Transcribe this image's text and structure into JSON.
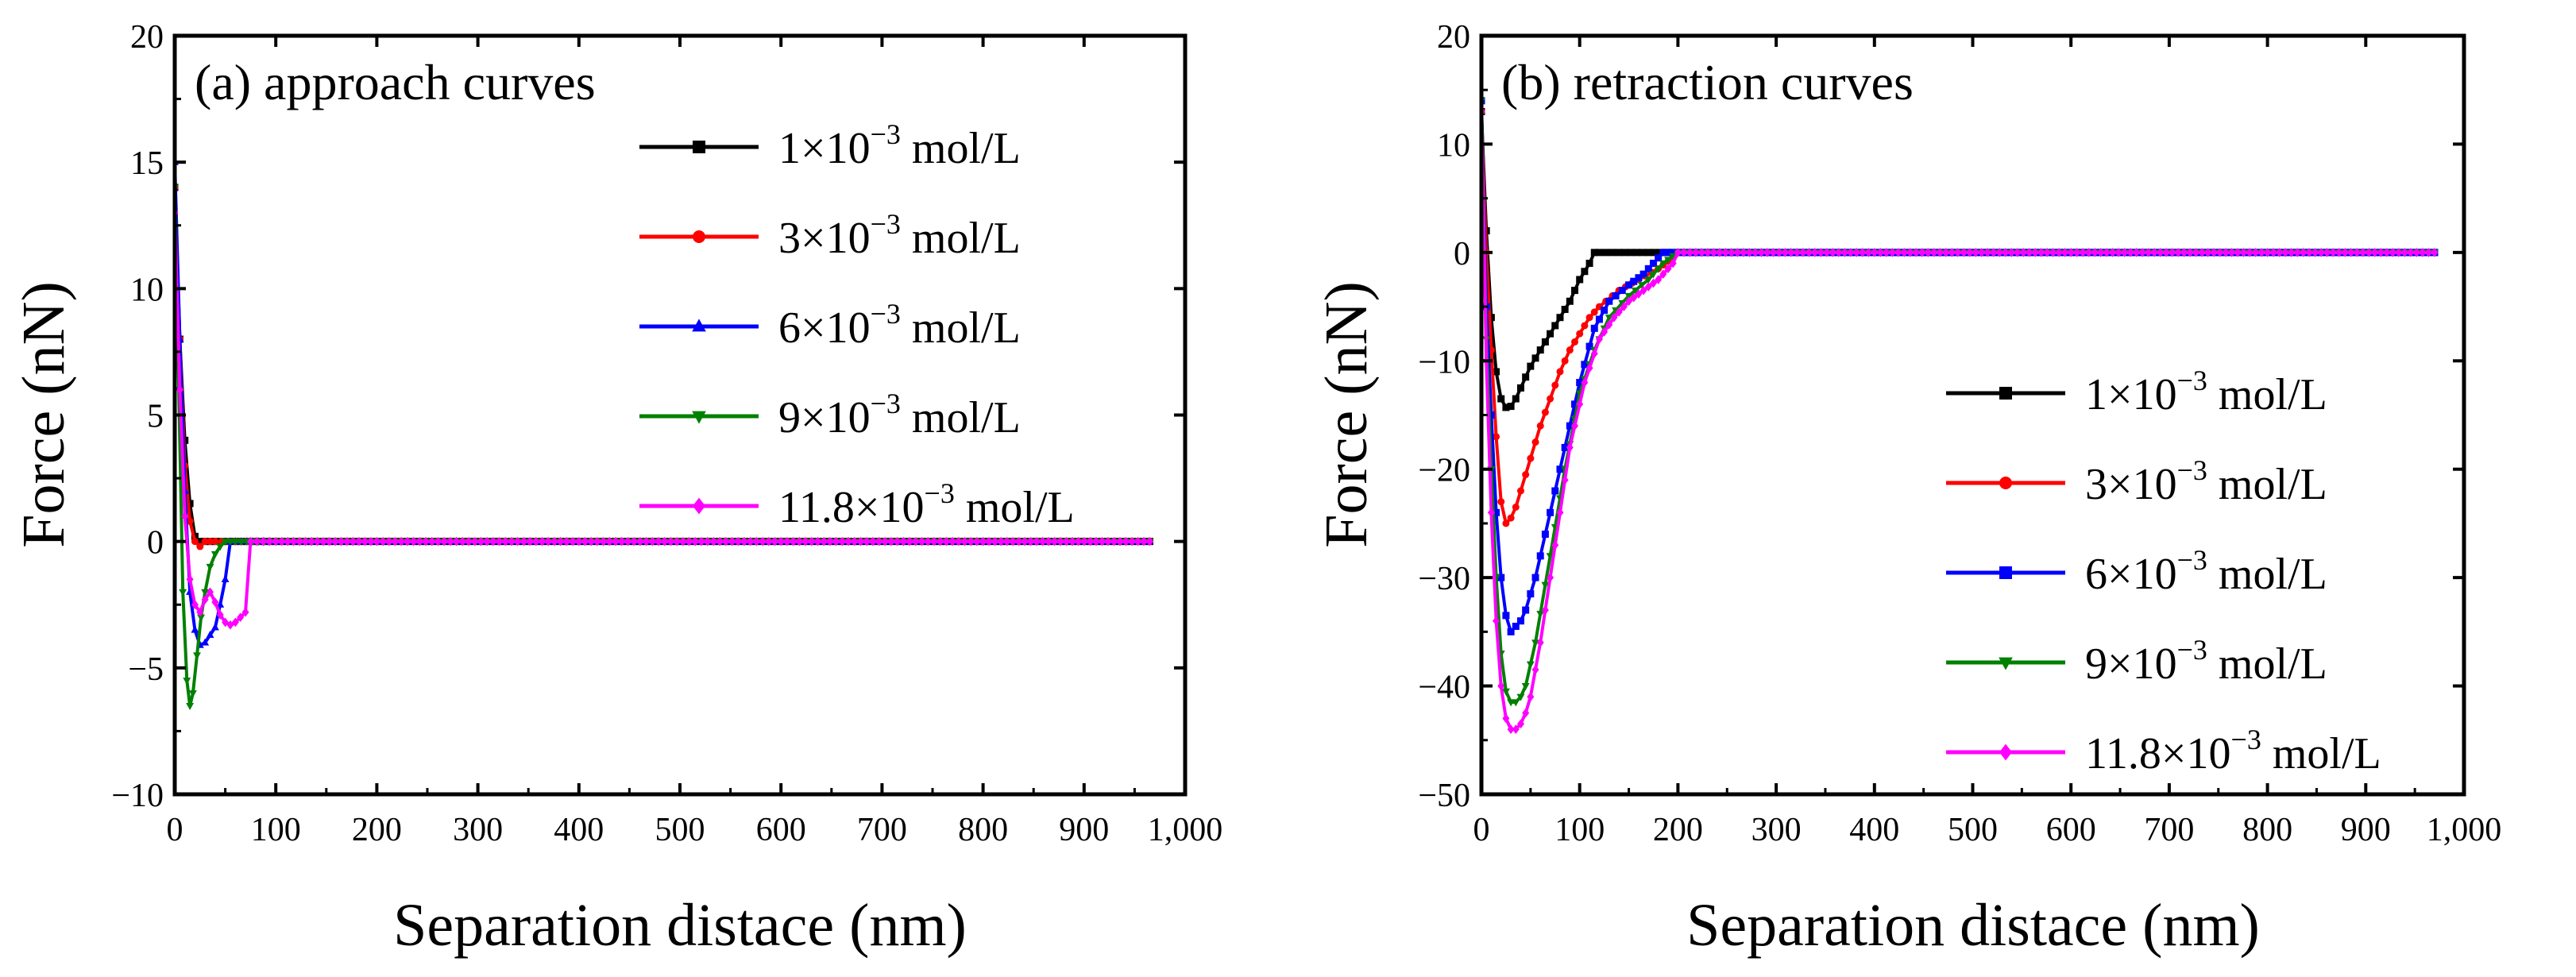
{
  "chart_data": [
    {
      "type": "line",
      "title": "(a) approach curves",
      "xlabel": "Separation distace (nm)",
      "ylabel": "Force (nN)",
      "xlim": [
        0,
        1000
      ],
      "ylim": [
        -10,
        20
      ],
      "x_ticks": [
        0,
        100,
        200,
        300,
        400,
        500,
        600,
        700,
        800,
        900,
        1000
      ],
      "x_tick_labels": [
        "0",
        "100",
        "200",
        "300",
        "400",
        "500",
        "600",
        "700",
        "800",
        "900",
        "1,000"
      ],
      "y_ticks": [
        -10,
        -5,
        0,
        5,
        10,
        15,
        20
      ],
      "y_tick_labels": [
        "−10",
        "−5",
        "0",
        "5",
        "10",
        "15",
        "20"
      ],
      "legend_position": "top-right",
      "series": [
        {
          "name_prefix": "1×10",
          "name_exp": "−3",
          "name_suffix": " mol/L",
          "color": "#000000",
          "marker": "square",
          "x": [
            0,
            5,
            10,
            15,
            20,
            25,
            30,
            40,
            60,
            100,
            200,
            400,
            600,
            800,
            965
          ],
          "y": [
            14,
            8,
            4,
            1.5,
            0.2,
            0,
            0,
            0,
            0,
            0,
            0,
            0,
            0,
            0,
            0
          ]
        },
        {
          "name_prefix": "3×10",
          "name_exp": "−3",
          "name_suffix": " mol/L",
          "color": "#ff0000",
          "marker": "circle",
          "x": [
            0,
            5,
            10,
            15,
            20,
            25,
            30,
            40,
            60,
            100,
            200,
            400,
            600,
            800,
            965
          ],
          "y": [
            14,
            8,
            3,
            0.8,
            0,
            -0.2,
            0,
            0,
            0,
            0,
            0,
            0,
            0,
            0,
            0
          ]
        },
        {
          "name_prefix": "6×10",
          "name_exp": "−3",
          "name_suffix": " mol/L",
          "color": "#0000ff",
          "marker": "triangle-up",
          "x": [
            0,
            5,
            10,
            15,
            20,
            25,
            30,
            35,
            40,
            45,
            50,
            55,
            60,
            100,
            200,
            400,
            600,
            800,
            965
          ],
          "y": [
            15,
            8,
            2,
            -2,
            -3.5,
            -4.1,
            -4,
            -3.7,
            -3.4,
            -2.5,
            -1.5,
            0,
            0,
            0,
            0,
            0,
            0,
            0,
            0
          ]
        },
        {
          "name_prefix": "9×10",
          "name_exp": "−3",
          "name_suffix": " mol/L",
          "color": "#008000",
          "marker": "triangle-down",
          "x": [
            0,
            4,
            8,
            12,
            15,
            18,
            22,
            26,
            30,
            35,
            40,
            45,
            50,
            60,
            100,
            200,
            400,
            600,
            800,
            965
          ],
          "y": [
            14,
            6,
            -2,
            -5.5,
            -6.5,
            -6,
            -4.5,
            -3,
            -2,
            -1,
            -0.5,
            -0.2,
            0,
            0,
            0,
            0,
            0,
            0,
            0,
            0
          ]
        },
        {
          "name_prefix": "11.8×10",
          "name_exp": "−3",
          "name_suffix": " mol/L",
          "color": "#ff00ff",
          "marker": "diamond",
          "x": [
            0,
            5,
            10,
            15,
            20,
            25,
            30,
            35,
            40,
            45,
            50,
            55,
            60,
            65,
            70,
            75,
            100,
            200,
            400,
            600,
            800,
            965
          ],
          "y": [
            13,
            6,
            1,
            -1.5,
            -2.5,
            -2.8,
            -2.3,
            -2,
            -2.4,
            -2.9,
            -3.2,
            -3.3,
            -3.2,
            -3,
            -2.8,
            0,
            0,
            0,
            0,
            0,
            0,
            0
          ]
        }
      ]
    },
    {
      "type": "line",
      "title": "(b) retraction curves",
      "xlabel": "Separation distace (nm)",
      "ylabel": "Force (nN)",
      "xlim": [
        0,
        1000
      ],
      "ylim": [
        -50,
        20
      ],
      "x_ticks": [
        0,
        100,
        200,
        300,
        400,
        500,
        600,
        700,
        800,
        900,
        1000
      ],
      "x_tick_labels": [
        "0",
        "100",
        "200",
        "300",
        "400",
        "500",
        "600",
        "700",
        "800",
        "900",
        "1,000"
      ],
      "y_ticks": [
        -50,
        -40,
        -30,
        -20,
        -10,
        0,
        10,
        20
      ],
      "y_tick_labels": [
        "−50",
        "−40",
        "−30",
        "−20",
        "−10",
        "0",
        "10",
        "20"
      ],
      "legend_position": "bottom-right",
      "series": [
        {
          "name_prefix": "1×10",
          "name_exp": "−3",
          "name_suffix": " mol/L",
          "color": "#000000",
          "marker": "square",
          "x": [
            0,
            5,
            10,
            15,
            20,
            25,
            30,
            35,
            40,
            45,
            50,
            60,
            70,
            80,
            90,
            100,
            110,
            115,
            120,
            140,
            200,
            400,
            600,
            800,
            970
          ],
          "y": [
            13,
            2,
            -6,
            -11,
            -13.5,
            -14.3,
            -14.2,
            -13.5,
            -12.5,
            -11.5,
            -10.5,
            -9,
            -7.5,
            -6,
            -4.5,
            -2.5,
            -1,
            0,
            0,
            0,
            0,
            0,
            0,
            0,
            0
          ]
        },
        {
          "name_prefix": "3×10",
          "name_exp": "−3",
          "name_suffix": " mol/L",
          "color": "#ff0000",
          "marker": "circle",
          "x": [
            0,
            5,
            10,
            15,
            20,
            25,
            30,
            35,
            40,
            45,
            50,
            55,
            60,
            70,
            80,
            90,
            100,
            110,
            120,
            140,
            160,
            180,
            190,
            200,
            400,
            600,
            800,
            970
          ],
          "y": [
            13,
            0,
            -9,
            -17,
            -23,
            -25,
            -24.5,
            -23.5,
            -22,
            -20.5,
            -19,
            -17.5,
            -16,
            -13.5,
            -11,
            -9,
            -7.5,
            -6,
            -5,
            -3.5,
            -2.5,
            -1.5,
            -0.8,
            0,
            0,
            0,
            0,
            0
          ]
        },
        {
          "name_prefix": "6×10",
          "name_exp": "−3",
          "name_suffix": " mol/L",
          "color": "#0000ff",
          "marker": "square",
          "x": [
            0,
            5,
            10,
            15,
            20,
            25,
            30,
            35,
            40,
            45,
            55,
            70,
            85,
            100,
            115,
            130,
            150,
            165,
            175,
            185,
            200,
            400,
            600,
            800,
            970
          ],
          "y": [
            14,
            -5,
            -15,
            -24,
            -30,
            -33.5,
            -35,
            -34.5,
            -34,
            -33,
            -30,
            -24,
            -18,
            -12,
            -7,
            -4.5,
            -3,
            -2,
            -1,
            0,
            0,
            0,
            0,
            0,
            0
          ]
        },
        {
          "name_prefix": "9×10",
          "name_exp": "−3",
          "name_suffix": " mol/L",
          "color": "#008000",
          "marker": "triangle-down",
          "x": [
            0,
            5,
            10,
            15,
            20,
            25,
            30,
            35,
            40,
            45,
            55,
            70,
            85,
            100,
            115,
            130,
            150,
            170,
            185,
            200,
            400,
            600,
            800,
            970
          ],
          "y": [
            14,
            -8,
            -20,
            -30,
            -37,
            -40.5,
            -41.5,
            -41.5,
            -41,
            -40,
            -36,
            -28,
            -20,
            -13,
            -9,
            -6,
            -4,
            -2.5,
            -1,
            0,
            0,
            0,
            0,
            0
          ]
        },
        {
          "name_prefix": "11.8×10",
          "name_exp": "−3",
          "name_suffix": " mol/L",
          "color": "#ff00ff",
          "marker": "diamond",
          "x": [
            0,
            5,
            10,
            15,
            20,
            25,
            30,
            35,
            40,
            45,
            50,
            60,
            75,
            90,
            105,
            120,
            135,
            150,
            165,
            180,
            195,
            200,
            400,
            600,
            800,
            970
          ],
          "y": [
            13,
            -10,
            -24,
            -34,
            -40,
            -43,
            -44,
            -44,
            -43.5,
            -42.5,
            -41,
            -36,
            -27,
            -18,
            -12,
            -8,
            -6,
            -4.5,
            -3.5,
            -2.5,
            -1,
            0,
            0,
            0,
            0,
            0
          ]
        }
      ]
    }
  ]
}
